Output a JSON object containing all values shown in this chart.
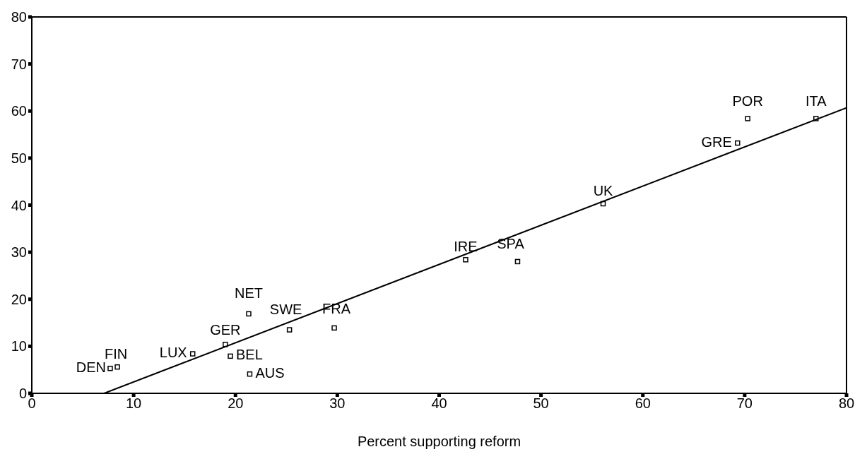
{
  "chart_data": {
    "type": "scatter",
    "xlabel": "Percent supporting reform",
    "xlim": [
      0,
      80
    ],
    "xticks": [
      0,
      10,
      20,
      30,
      40,
      50,
      60,
      70,
      80
    ],
    "ylim": [
      0,
      80
    ],
    "yticks": [
      0,
      10,
      20,
      30,
      40,
      50,
      60,
      70,
      80
    ],
    "grid": false,
    "legend": false,
    "series": [
      {
        "marker": "square",
        "color": "#000000",
        "x": [
          7.7,
          8.4,
          15.8,
          19.0,
          19.5,
          21.4,
          21.3,
          25.3,
          29.7,
          42.6,
          47.7,
          56.1,
          69.3,
          70.3,
          77.0
        ],
        "values": [
          5.3,
          5.6,
          8.4,
          10.4,
          7.9,
          4.1,
          16.9,
          13.5,
          13.9,
          28.4,
          28.0,
          40.3,
          53.2,
          58.4,
          58.4
        ]
      },
      {
        "type": "line",
        "marker": "none",
        "color": "#000000",
        "x": [
          7.1,
          80
        ],
        "values": [
          0,
          60.7
        ]
      }
    ],
    "annotations": [
      {
        "text": "DEN",
        "x": 7.7,
        "y": 5.3
      },
      {
        "text": "FIN",
        "x": 8.4,
        "y": 5.6
      },
      {
        "text": "LUX",
        "x": 15.8,
        "y": 8.4
      },
      {
        "text": "GER",
        "x": 19.0,
        "y": 10.4
      },
      {
        "text": "BEL",
        "x": 19.5,
        "y": 7.9
      },
      {
        "text": "AUS",
        "x": 21.4,
        "y": 4.1
      },
      {
        "text": "NET",
        "x": 21.3,
        "y": 16.9
      },
      {
        "text": "SWE",
        "x": 25.3,
        "y": 13.5
      },
      {
        "text": "FRA",
        "x": 29.7,
        "y": 13.9
      },
      {
        "text": "IRE",
        "x": 42.6,
        "y": 28.4
      },
      {
        "text": "SPA",
        "x": 47.7,
        "y": 28.0
      },
      {
        "text": "UK",
        "x": 56.1,
        "y": 40.3
      },
      {
        "text": "GRE",
        "x": 69.3,
        "y": 53.2
      },
      {
        "text": "POR",
        "x": 70.3,
        "y": 58.4
      },
      {
        "text": "ITA",
        "x": 77.0,
        "y": 58.4
      }
    ]
  }
}
